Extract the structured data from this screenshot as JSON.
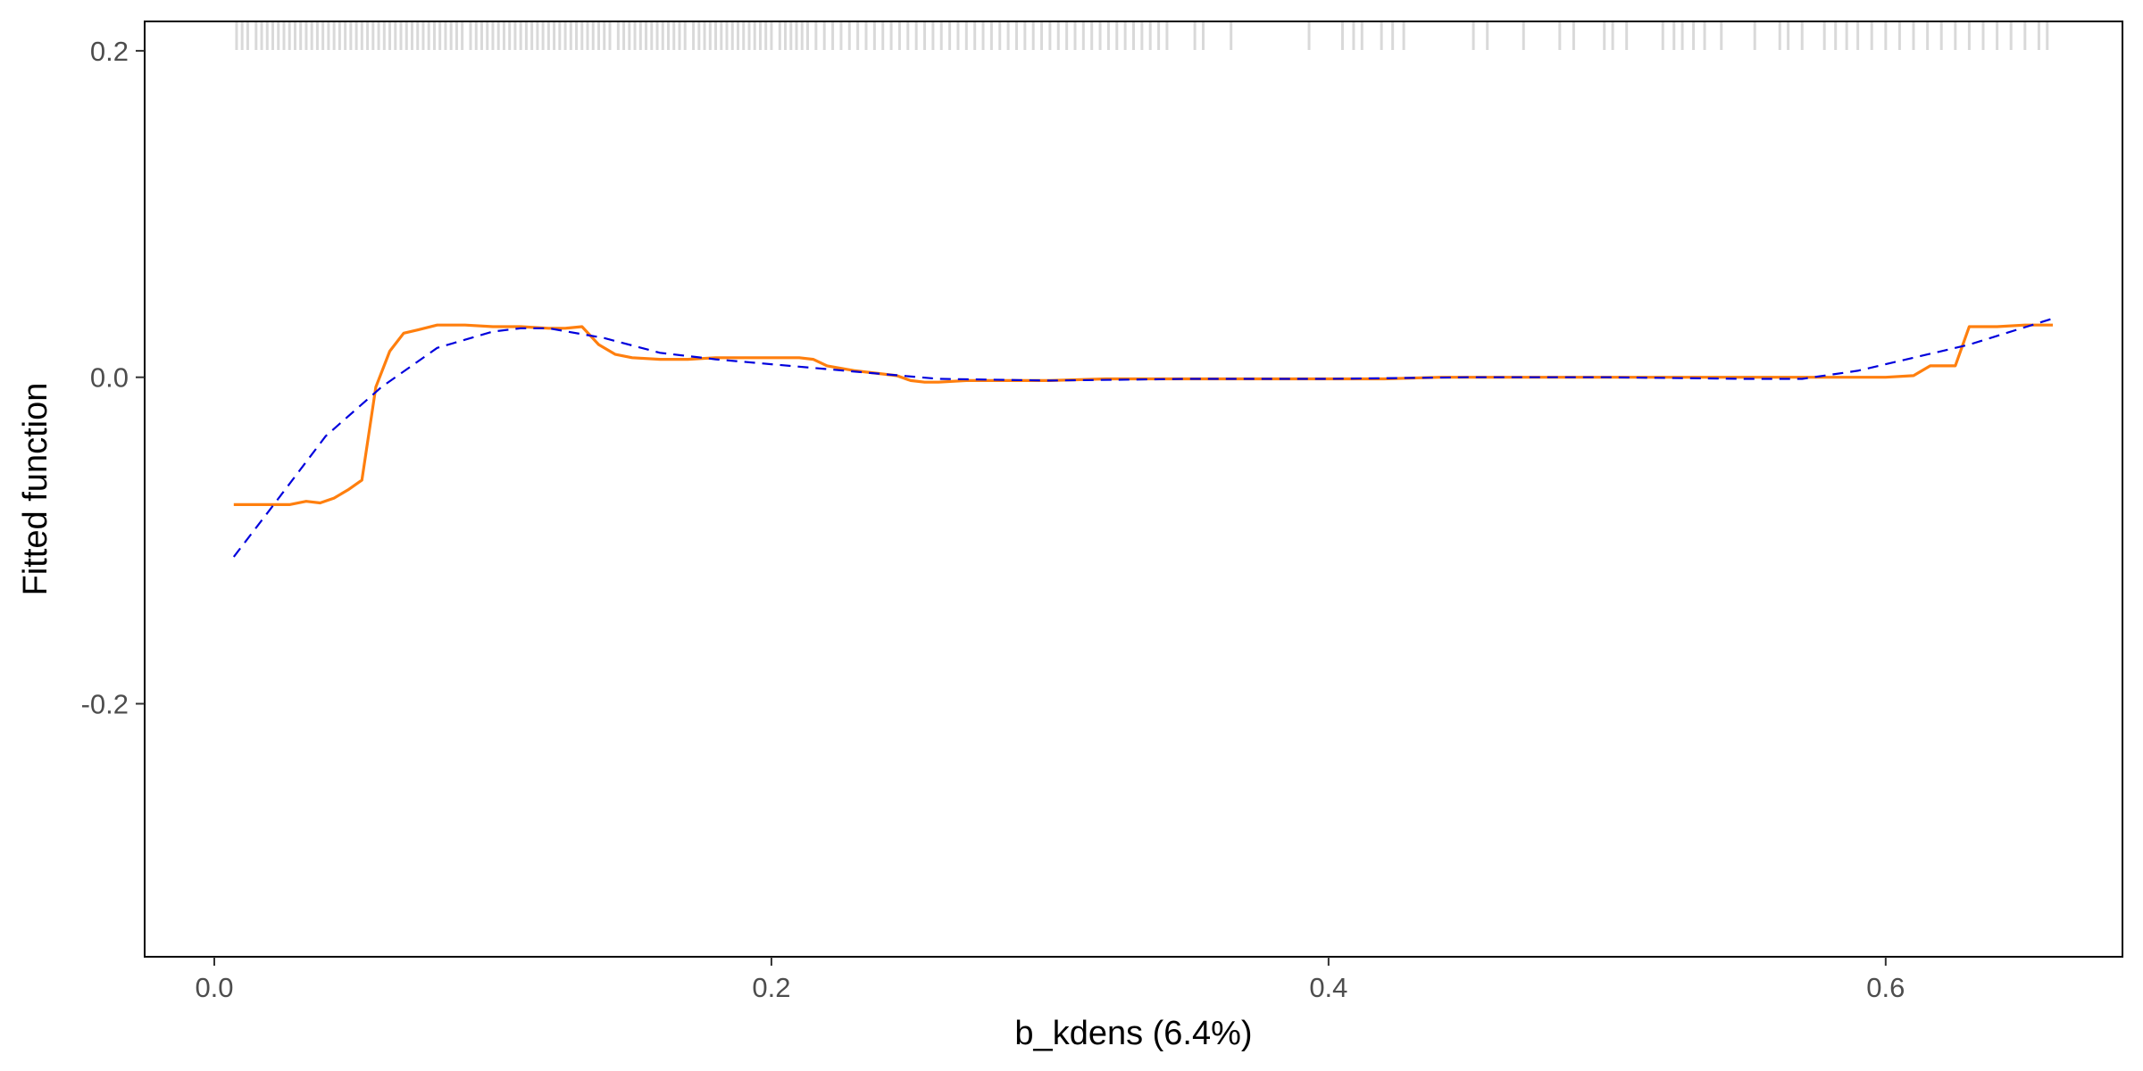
{
  "chart_data": {
    "type": "line",
    "title": "",
    "xlabel": "b_kdens  (6.4%)",
    "ylabel": "Fitted function",
    "xlim": [
      -0.025,
      0.685
    ],
    "ylim": [
      -0.355,
      0.218
    ],
    "x_ticks": [
      {
        "value": 0.0,
        "label": "0.0"
      },
      {
        "value": 0.2,
        "label": "0.2"
      },
      {
        "value": 0.4,
        "label": "0.4"
      },
      {
        "value": 0.6,
        "label": "0.6"
      }
    ],
    "y_ticks": [
      {
        "value": 0.2,
        "label": "0.2"
      },
      {
        "value": 0.0,
        "label": "0.0"
      },
      {
        "value": -0.2,
        "label": "-0.2"
      }
    ],
    "grid": false,
    "legend": "none",
    "colors": {
      "fitted": "#ff7f0e",
      "smooth": "#0000dd",
      "rug": "#d9d9d9",
      "frame": "#000000"
    },
    "series": [
      {
        "style": "solid",
        "color": "#ff7f0e",
        "x": [
          0.007,
          0.012,
          0.02,
          0.027,
          0.033,
          0.038,
          0.043,
          0.048,
          0.053,
          0.058,
          0.063,
          0.068,
          0.073,
          0.08,
          0.09,
          0.1,
          0.11,
          0.12,
          0.126,
          0.132,
          0.138,
          0.144,
          0.15,
          0.16,
          0.17,
          0.18,
          0.19,
          0.2,
          0.21,
          0.215,
          0.22,
          0.23,
          0.245,
          0.25,
          0.255,
          0.26,
          0.27,
          0.28,
          0.3,
          0.32,
          0.34,
          0.36,
          0.38,
          0.4,
          0.42,
          0.44,
          0.46,
          0.48,
          0.5,
          0.52,
          0.54,
          0.56,
          0.58,
          0.6,
          0.61,
          0.616,
          0.62,
          0.625,
          0.63,
          0.64,
          0.65,
          0.66
        ],
        "y": [
          -0.078,
          -0.078,
          -0.078,
          -0.078,
          -0.076,
          -0.077,
          -0.074,
          -0.069,
          -0.063,
          -0.006,
          0.016,
          0.027,
          0.029,
          0.032,
          0.032,
          0.031,
          0.031,
          0.03,
          0.03,
          0.031,
          0.02,
          0.014,
          0.012,
          0.011,
          0.011,
          0.012,
          0.012,
          0.012,
          0.012,
          0.011,
          0.007,
          0.004,
          0.001,
          -0.002,
          -0.003,
          -0.003,
          -0.002,
          -0.002,
          -0.002,
          -0.001,
          -0.001,
          -0.001,
          -0.001,
          -0.001,
          -0.001,
          0.0,
          0.0,
          0.0,
          0.0,
          0.0,
          0.0,
          0.0,
          0.0,
          0.0,
          0.001,
          0.007,
          0.007,
          0.007,
          0.031,
          0.031,
          0.032,
          0.032
        ]
      },
      {
        "style": "dashed",
        "color": "#0000dd",
        "x": [
          0.007,
          0.02,
          0.04,
          0.06,
          0.08,
          0.1,
          0.11,
          0.12,
          0.14,
          0.16,
          0.18,
          0.2,
          0.22,
          0.24,
          0.26,
          0.3,
          0.35,
          0.4,
          0.45,
          0.5,
          0.55,
          0.57,
          0.59,
          0.61,
          0.63,
          0.66
        ],
        "y": [
          -0.11,
          -0.081,
          -0.036,
          -0.006,
          0.018,
          0.028,
          0.03,
          0.03,
          0.024,
          0.015,
          0.011,
          0.008,
          0.005,
          0.002,
          -0.001,
          -0.002,
          -0.001,
          -0.001,
          0.0,
          0.0,
          -0.001,
          -0.001,
          0.004,
          0.012,
          0.02,
          0.036
        ]
      }
    ],
    "rug": [
      0.008,
      0.01,
      0.012,
      0.015,
      0.017,
      0.019,
      0.021,
      0.023,
      0.025,
      0.027,
      0.029,
      0.031,
      0.033,
      0.035,
      0.037,
      0.039,
      0.041,
      0.043,
      0.045,
      0.047,
      0.049,
      0.051,
      0.053,
      0.055,
      0.057,
      0.059,
      0.061,
      0.063,
      0.065,
      0.067,
      0.069,
      0.071,
      0.073,
      0.075,
      0.077,
      0.079,
      0.081,
      0.083,
      0.085,
      0.087,
      0.089,
      0.092,
      0.094,
      0.096,
      0.098,
      0.1,
      0.102,
      0.104,
      0.106,
      0.108,
      0.11,
      0.112,
      0.114,
      0.116,
      0.118,
      0.12,
      0.122,
      0.124,
      0.126,
      0.128,
      0.13,
      0.132,
      0.134,
      0.136,
      0.138,
      0.14,
      0.142,
      0.145,
      0.147,
      0.149,
      0.151,
      0.153,
      0.155,
      0.157,
      0.159,
      0.161,
      0.163,
      0.165,
      0.167,
      0.169,
      0.172,
      0.174,
      0.176,
      0.178,
      0.18,
      0.182,
      0.184,
      0.186,
      0.188,
      0.19,
      0.192,
      0.194,
      0.196,
      0.198,
      0.2,
      0.203,
      0.205,
      0.207,
      0.209,
      0.211,
      0.213,
      0.216,
      0.219,
      0.222,
      0.225,
      0.228,
      0.231,
      0.234,
      0.237,
      0.24,
      0.243,
      0.246,
      0.249,
      0.252,
      0.255,
      0.258,
      0.261,
      0.264,
      0.267,
      0.27,
      0.273,
      0.276,
      0.279,
      0.282,
      0.285,
      0.288,
      0.291,
      0.294,
      0.297,
      0.3,
      0.303,
      0.306,
      0.309,
      0.312,
      0.315,
      0.318,
      0.321,
      0.324,
      0.327,
      0.33,
      0.333,
      0.336,
      0.339,
      0.342,
      0.352,
      0.355,
      0.365,
      0.393,
      0.405,
      0.409,
      0.412,
      0.419,
      0.423,
      0.427,
      0.452,
      0.457,
      0.47,
      0.483,
      0.488,
      0.499,
      0.502,
      0.507,
      0.52,
      0.524,
      0.527,
      0.531,
      0.535,
      0.541,
      0.553,
      0.562,
      0.565,
      0.57,
      0.578,
      0.582,
      0.586,
      0.59,
      0.595,
      0.6,
      0.605,
      0.61,
      0.615,
      0.62,
      0.625,
      0.63,
      0.635,
      0.64,
      0.645,
      0.65,
      0.655,
      0.658
    ]
  }
}
